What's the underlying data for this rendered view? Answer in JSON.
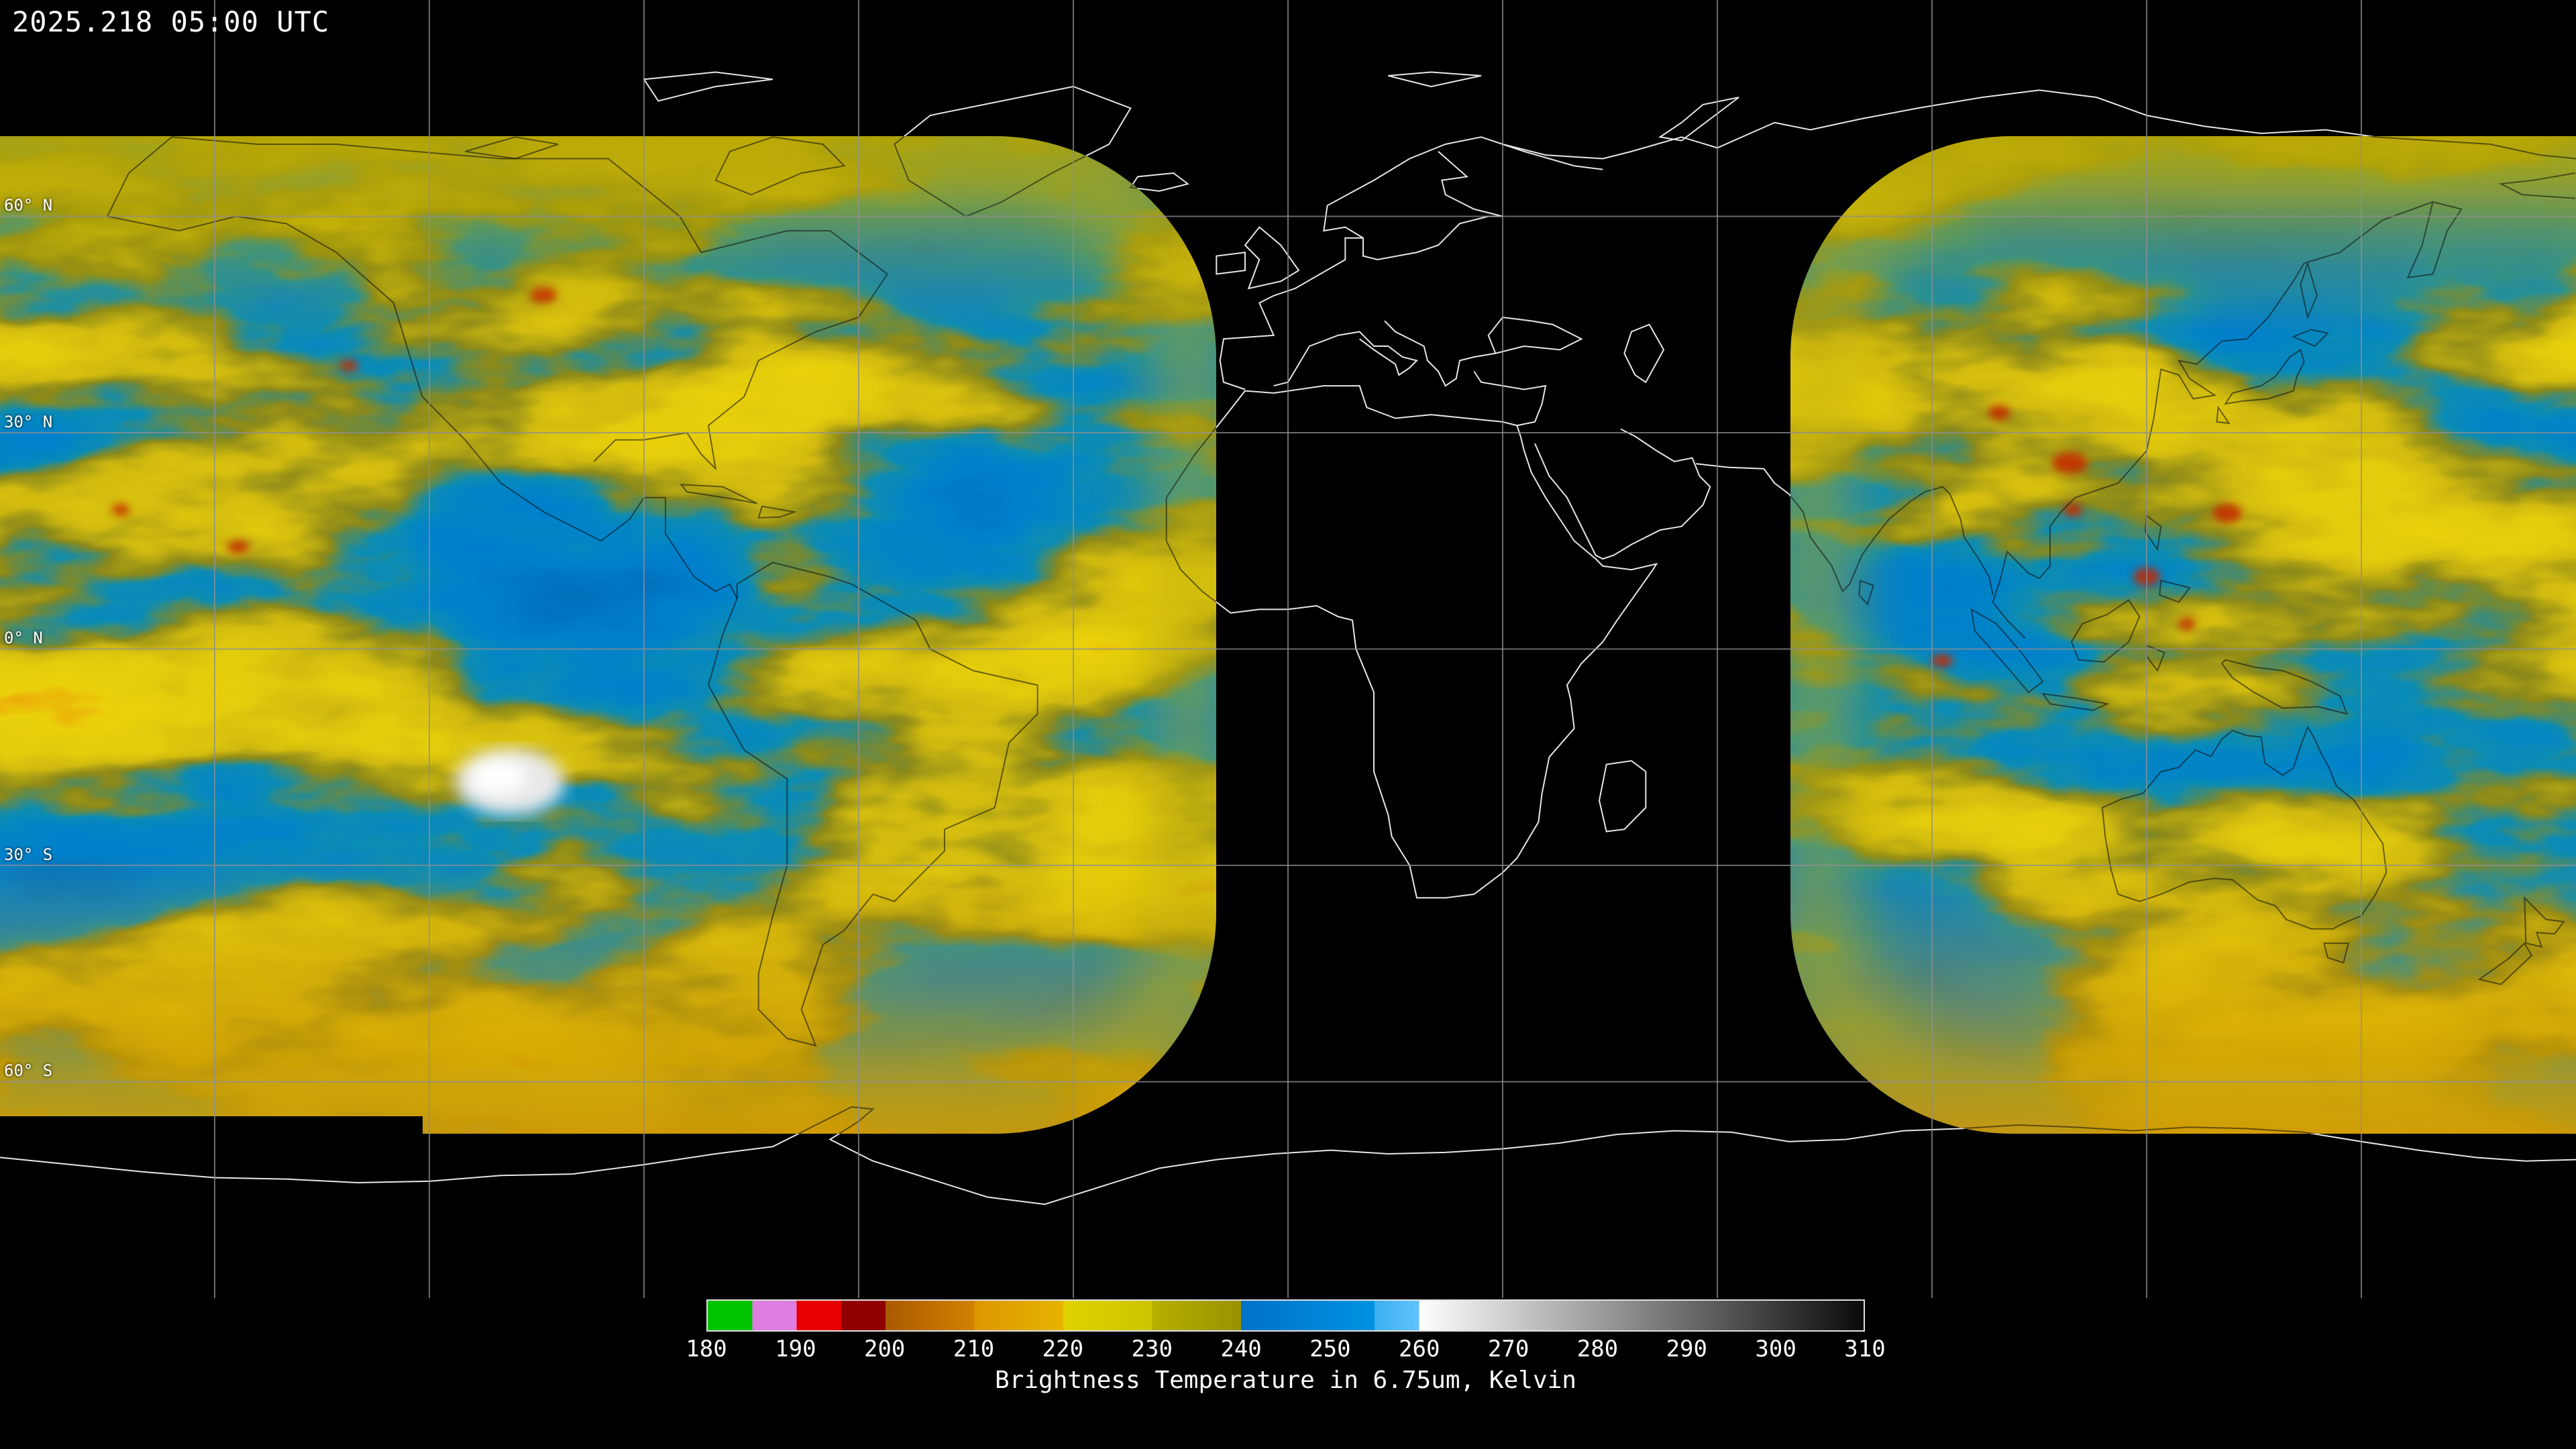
{
  "header": {
    "timestamp": "2025.218 05:00 UTC"
  },
  "map": {
    "background_color": "#000000",
    "coastline_color": "#e6e6e6",
    "grid_color": "#8f8f8f",
    "latitude_labels": [
      "60° N",
      "30° N",
      "0° N",
      "30° S",
      "60° S"
    ],
    "imagery_palette": {
      "dry_blue": "#0080d0",
      "moist_yellow": "#d4c800",
      "cold_orange": "#dc8c00",
      "very_cold_red": "#c42800",
      "warm_white_patch": "#f0f0f0"
    }
  },
  "colorbar": {
    "title": "Brightness Temperature in 6.75um, Kelvin",
    "min_k": 180,
    "max_k": 310,
    "tick_labels": [
      "180",
      "190",
      "200",
      "210",
      "220",
      "230",
      "240",
      "250",
      "260",
      "270",
      "280",
      "290",
      "300",
      "310"
    ],
    "stops": [
      {
        "k": 180,
        "color": "#00c400"
      },
      {
        "k": 185,
        "color": "#00c400"
      },
      {
        "k": 185,
        "color": "#df7de2"
      },
      {
        "k": 190,
        "color": "#df7de2"
      },
      {
        "k": 190,
        "color": "#e80000"
      },
      {
        "k": 195,
        "color": "#e80000"
      },
      {
        "k": 195,
        "color": "#8f0000"
      },
      {
        "k": 200,
        "color": "#8f0000"
      },
      {
        "k": 200,
        "color": "#aa5a00"
      },
      {
        "k": 210,
        "color": "#d28200"
      },
      {
        "k": 210,
        "color": "#dc9600"
      },
      {
        "k": 220,
        "color": "#e6b400"
      },
      {
        "k": 220,
        "color": "#e0d200"
      },
      {
        "k": 230,
        "color": "#ccc600"
      },
      {
        "k": 230,
        "color": "#b6b000"
      },
      {
        "k": 240,
        "color": "#989200"
      },
      {
        "k": 240,
        "color": "#0072c8"
      },
      {
        "k": 255,
        "color": "#0092e2"
      },
      {
        "k": 255,
        "color": "#3cb0f0"
      },
      {
        "k": 260,
        "color": "#62c2ff"
      },
      {
        "k": 260,
        "color": "#ffffff"
      },
      {
        "k": 310,
        "color": "#0a0a0a"
      }
    ]
  }
}
